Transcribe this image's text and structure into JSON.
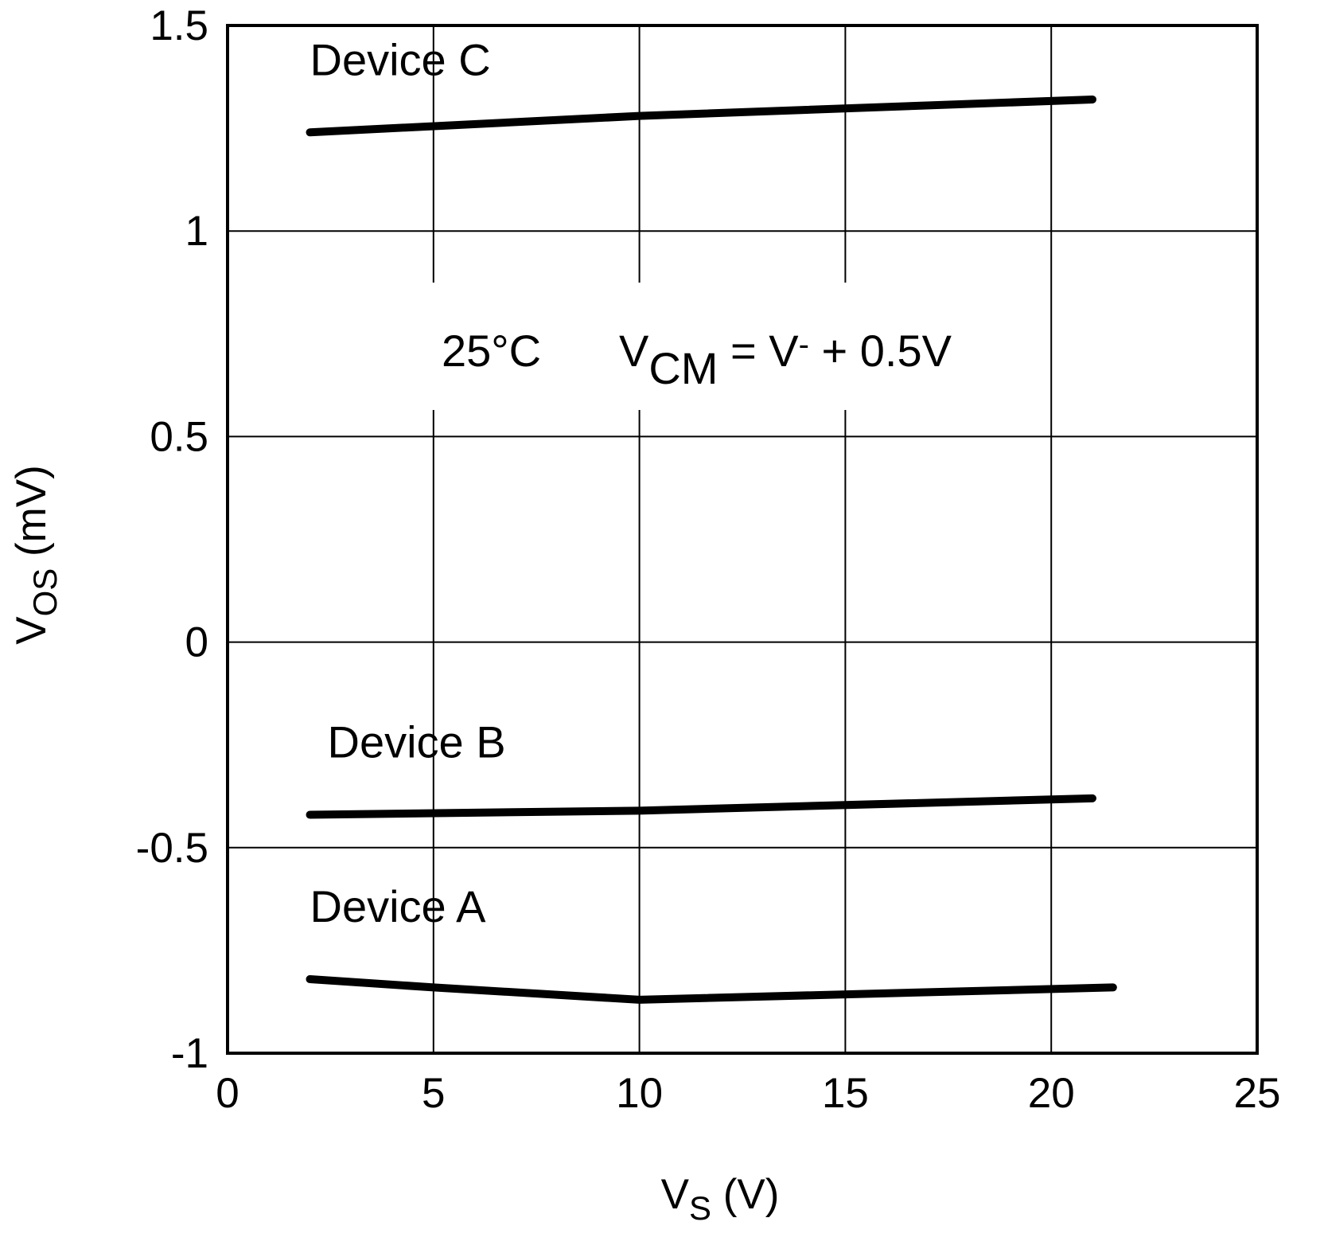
{
  "chart_data": {
    "type": "line",
    "x": {
      "label_main": "V",
      "label_sub": "S",
      "label_unit": " (V)",
      "lim": [
        0,
        25
      ],
      "ticks": [
        0,
        5,
        10,
        15,
        20,
        25
      ],
      "tick_labels": [
        "0",
        "5",
        "10",
        "15",
        "20",
        "25"
      ]
    },
    "y": {
      "label_main": "V",
      "label_sub": "OS",
      "label_unit": " (mV)",
      "lim": [
        -1,
        1.5
      ],
      "ticks": [
        -1,
        -0.5,
        0,
        0.5,
        1,
        1.5
      ],
      "tick_labels": [
        "-1",
        "-0.5",
        "0",
        "0.5",
        "1",
        "1.5"
      ]
    },
    "grid": true,
    "series": [
      {
        "name": "Device C",
        "x": [
          2,
          10,
          21
        ],
        "y": [
          1.24,
          1.28,
          1.32
        ]
      },
      {
        "name": "Device B",
        "x": [
          2,
          10,
          21
        ],
        "y": [
          -0.42,
          -0.41,
          -0.38
        ]
      },
      {
        "name": "Device A",
        "x": [
          2,
          5,
          10,
          21.5
        ],
        "y": [
          -0.82,
          -0.84,
          -0.87,
          -0.84
        ]
      }
    ],
    "annotations": {
      "temperature": "25°C",
      "vcm_main": "V",
      "vcm_sub": "CM",
      "vcm_rest": " = V",
      "vcm_sup": "-",
      "vcm_tail": " + 0.5V"
    },
    "line_color": "#000000",
    "grid_color": "#000000"
  }
}
